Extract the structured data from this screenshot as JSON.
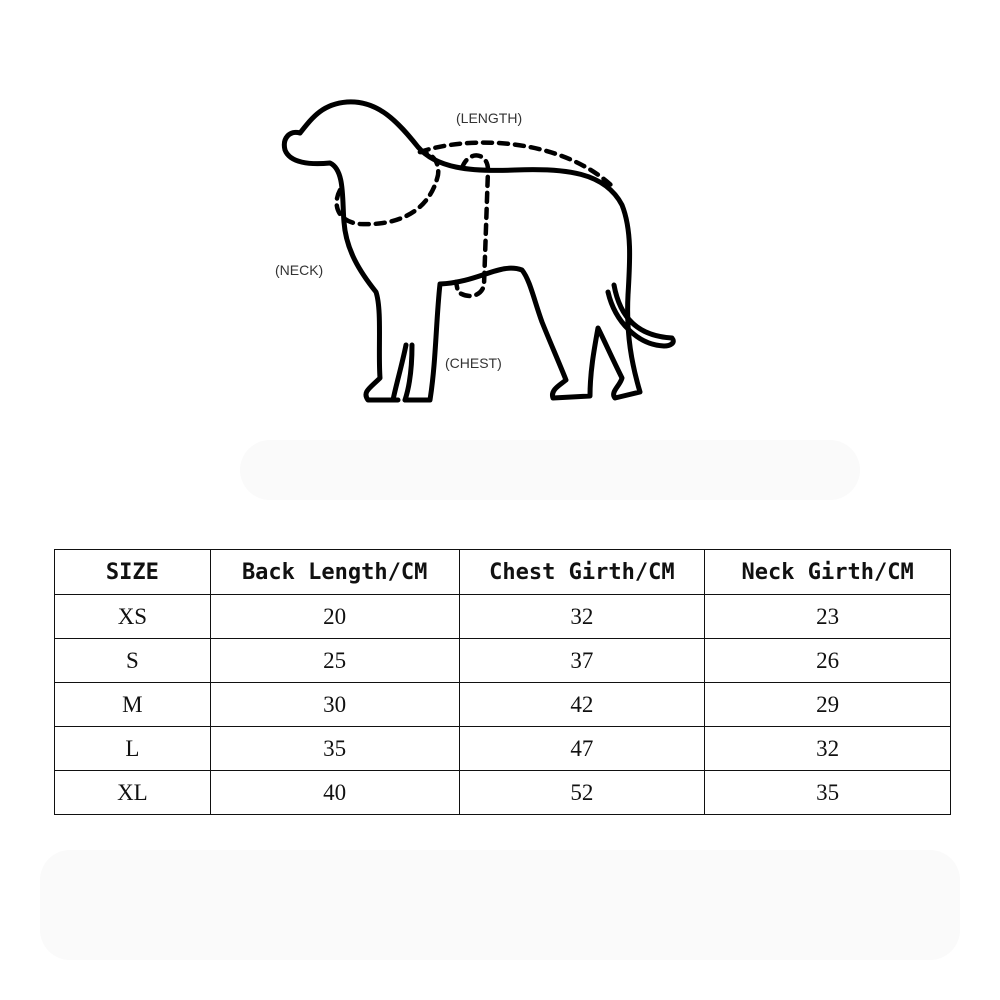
{
  "diagram": {
    "labels": {
      "length": "(LENGTH)",
      "neck": "(NECK)",
      "chest": "(CHEST)"
    }
  },
  "table": {
    "headers": [
      "SIZE",
      "Back Length/CM",
      "Chest Girth/CM",
      "Neck Girth/CM"
    ],
    "rows": [
      [
        "XS",
        "20",
        "32",
        "23"
      ],
      [
        "S",
        "25",
        "37",
        "26"
      ],
      [
        "M",
        "30",
        "42",
        "29"
      ],
      [
        "L",
        "35",
        "47",
        "32"
      ],
      [
        "XL",
        "40",
        "52",
        "35"
      ]
    ]
  }
}
